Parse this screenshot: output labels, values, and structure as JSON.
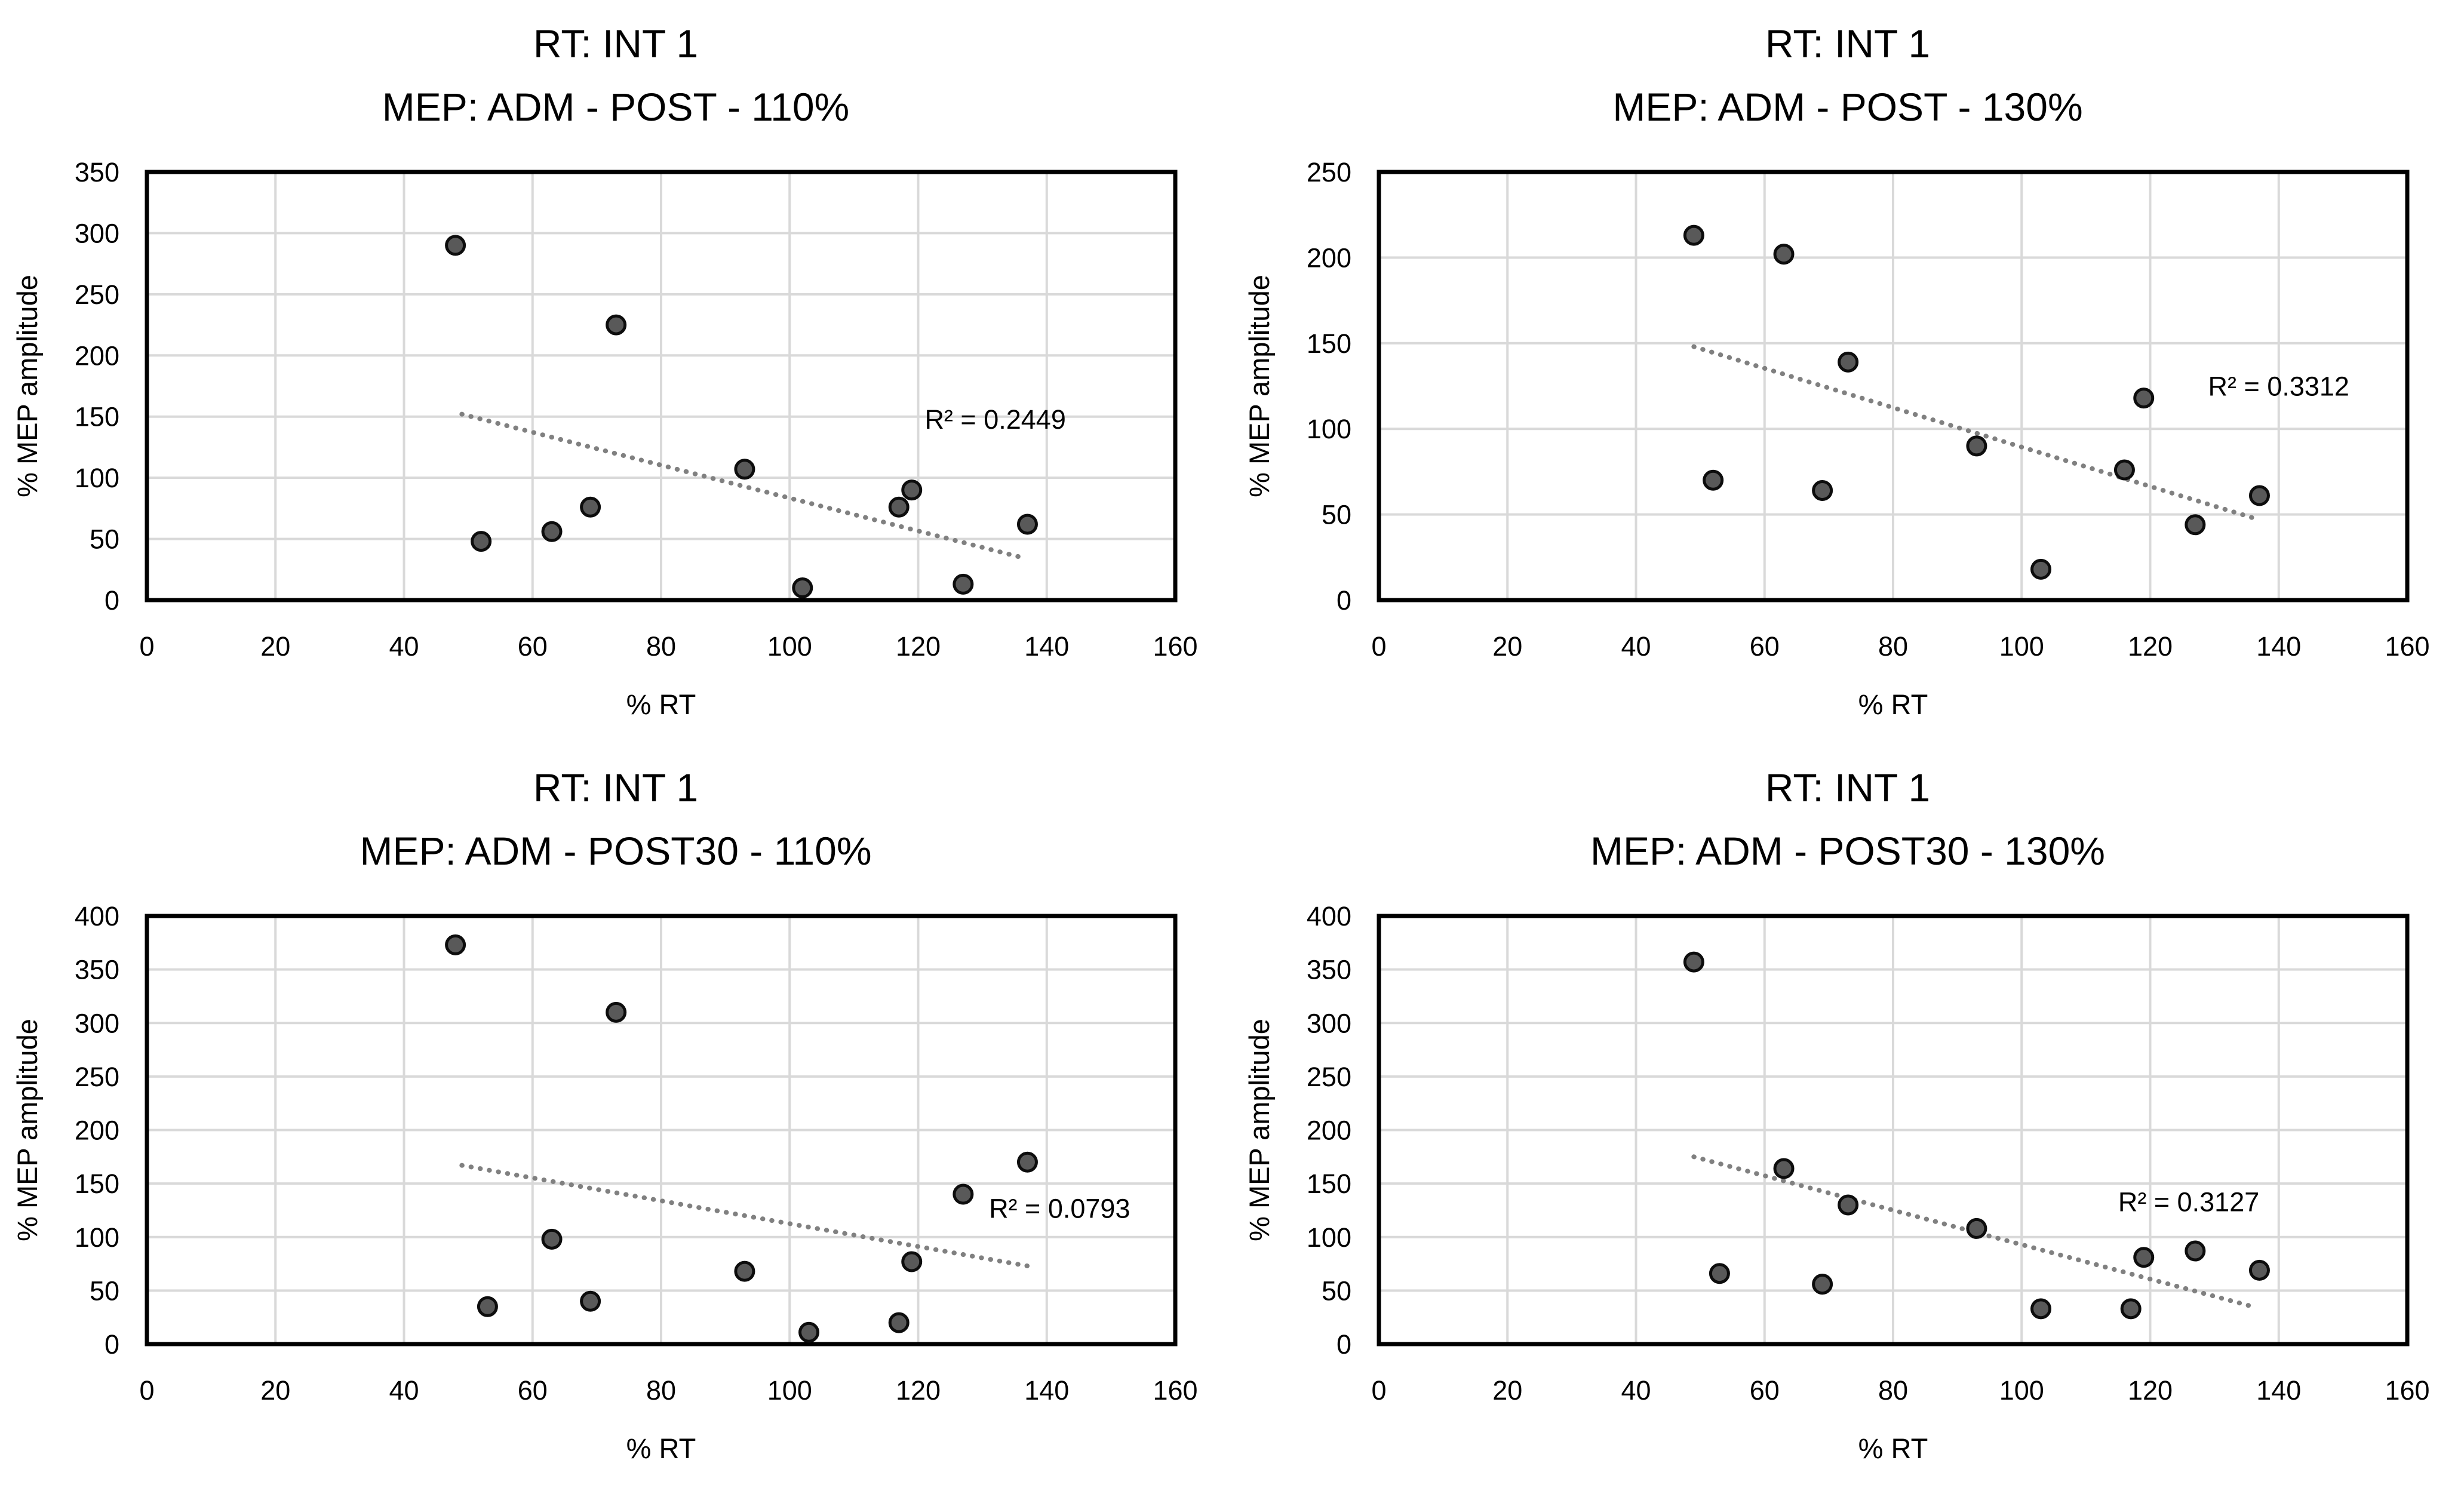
{
  "figure": {
    "background": "#ffffff",
    "text_color": "#000000",
    "gridline_color": "#d9d9d9",
    "border_color": "#000000",
    "marker_fill": "#595959",
    "marker_edge": "#0d0d0d",
    "trendline_color": "#808080"
  },
  "chart_data": [
    {
      "type": "scatter",
      "title_line1": "RT: INT 1",
      "title_line2": "MEP: ADM - POST - 110%",
      "xlabel": "% RT",
      "ylabel": "% MEP amplitude",
      "xlim": [
        0,
        160
      ],
      "ylim": [
        0,
        350
      ],
      "xticks": [
        0,
        20,
        40,
        60,
        80,
        100,
        120,
        140,
        160
      ],
      "yticks": [
        0,
        50,
        100,
        150,
        200,
        250,
        300,
        350
      ],
      "grid": true,
      "legend": "none",
      "points": [
        [
          48,
          290
        ],
        [
          52,
          48
        ],
        [
          63,
          56
        ],
        [
          69,
          76
        ],
        [
          73,
          225
        ],
        [
          93,
          107
        ],
        [
          102,
          10
        ],
        [
          117,
          76
        ],
        [
          119,
          90
        ],
        [
          127,
          13
        ],
        [
          137,
          62
        ]
      ],
      "trendline": {
        "style": "dotted",
        "x1": 49,
        "y1": 152,
        "x2": 136,
        "y2": 35
      },
      "r2_label": "R² = 0.2449",
      "r2_pos": [
        132,
        148
      ]
    },
    {
      "type": "scatter",
      "title_line1": "RT: INT 1",
      "title_line2": "MEP: ADM - POST - 130%",
      "xlabel": "% RT",
      "ylabel": "% MEP amplitude",
      "xlim": [
        0,
        160
      ],
      "ylim": [
        0,
        250
      ],
      "xticks": [
        0,
        20,
        40,
        60,
        80,
        100,
        120,
        140,
        160
      ],
      "yticks": [
        0,
        50,
        100,
        150,
        200,
        250
      ],
      "grid": true,
      "legend": "none",
      "points": [
        [
          49,
          213
        ],
        [
          52,
          70
        ],
        [
          63,
          202
        ],
        [
          69,
          64
        ],
        [
          73,
          139
        ],
        [
          93,
          90
        ],
        [
          103,
          18
        ],
        [
          116,
          76
        ],
        [
          119,
          118
        ],
        [
          127,
          44
        ],
        [
          137,
          61
        ]
      ],
      "trendline": {
        "style": "dotted",
        "x1": 49,
        "y1": 148,
        "x2": 136,
        "y2": 48
      },
      "r2_label": "R² = 0.3312",
      "r2_pos": [
        140,
        125
      ]
    },
    {
      "type": "scatter",
      "title_line1": "RT: INT 1",
      "title_line2": "MEP: ADM - POST30 - 110%",
      "xlabel": "% RT",
      "ylabel": "% MEP amplitude",
      "xlim": [
        0,
        160
      ],
      "ylim": [
        0,
        400
      ],
      "xticks": [
        0,
        20,
        40,
        60,
        80,
        100,
        120,
        140,
        160
      ],
      "yticks": [
        0,
        50,
        100,
        150,
        200,
        250,
        300,
        350,
        400
      ],
      "grid": true,
      "legend": "none",
      "points": [
        [
          48,
          373
        ],
        [
          53,
          35
        ],
        [
          63,
          98
        ],
        [
          69,
          40
        ],
        [
          73,
          310
        ],
        [
          93,
          68
        ],
        [
          103,
          11
        ],
        [
          117,
          20
        ],
        [
          119,
          77
        ],
        [
          127,
          140
        ],
        [
          137,
          170
        ]
      ],
      "trendline": {
        "style": "dotted",
        "x1": 49,
        "y1": 167,
        "x2": 137,
        "y2": 73
      },
      "r2_label": "R² = 0.0793",
      "r2_pos": [
        142,
        127
      ]
    },
    {
      "type": "scatter",
      "title_line1": "RT: INT 1",
      "title_line2": "MEP: ADM - POST30 - 130%",
      "xlabel": "% RT",
      "ylabel": "% MEP amplitude",
      "xlim": [
        0,
        160
      ],
      "ylim": [
        0,
        400
      ],
      "xticks": [
        0,
        20,
        40,
        60,
        80,
        100,
        120,
        140,
        160
      ],
      "yticks": [
        0,
        50,
        100,
        150,
        200,
        250,
        300,
        350,
        400
      ],
      "grid": true,
      "legend": "none",
      "points": [
        [
          49,
          357
        ],
        [
          53,
          66
        ],
        [
          63,
          164
        ],
        [
          69,
          56
        ],
        [
          73,
          130
        ],
        [
          93,
          108
        ],
        [
          103,
          33
        ],
        [
          117,
          33
        ],
        [
          119,
          81
        ],
        [
          127,
          87
        ],
        [
          137,
          69
        ]
      ],
      "trendline": {
        "style": "dotted",
        "x1": 49,
        "y1": 175,
        "x2": 136,
        "y2": 35
      },
      "r2_label": "R² = 0.3127",
      "r2_pos": [
        126,
        133
      ]
    }
  ]
}
